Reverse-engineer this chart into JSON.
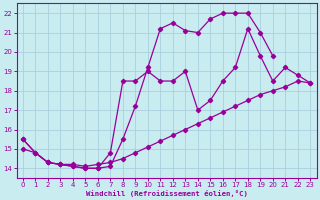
{
  "xlabel": "Windchill (Refroidissement éolien,°C)",
  "background_color": "#c8ecf0",
  "grid_color": "#a8d0dc",
  "line_color": "#990099",
  "xlim": [
    -0.5,
    23.5
  ],
  "ylim": [
    13.5,
    22.5
  ],
  "xticks": [
    0,
    1,
    2,
    3,
    4,
    5,
    6,
    7,
    8,
    9,
    10,
    11,
    12,
    13,
    14,
    15,
    16,
    17,
    18,
    19,
    20,
    21,
    22,
    23
  ],
  "yticks": [
    14,
    15,
    16,
    17,
    18,
    19,
    20,
    21,
    22
  ],
  "line1_x": [
    0,
    1,
    2,
    3,
    4,
    5,
    6,
    7,
    8,
    9,
    10,
    11,
    12,
    13,
    14,
    15,
    16,
    17,
    18,
    19,
    20
  ],
  "line1_y": [
    15.5,
    14.8,
    14.3,
    14.2,
    14.1,
    14.0,
    14.0,
    14.1,
    15.5,
    17.2,
    19.2,
    21.2,
    21.5,
    21.1,
    21.0,
    21.7,
    22.0,
    22.0,
    22.0,
    21.0,
    19.8
  ],
  "line2_x": [
    0,
    1,
    2,
    3,
    4,
    5,
    6,
    7,
    8,
    9,
    10,
    11,
    12,
    13,
    14,
    15,
    16,
    17,
    18,
    19,
    20,
    21,
    22,
    23
  ],
  "line2_y": [
    15.0,
    14.8,
    14.3,
    14.2,
    14.1,
    14.0,
    14.0,
    14.8,
    18.5,
    18.5,
    19.0,
    18.5,
    18.5,
    19.0,
    17.0,
    17.5,
    18.5,
    19.2,
    21.2,
    19.8,
    18.5,
    19.2,
    18.8,
    18.4
  ],
  "line3_x": [
    0,
    1,
    2,
    3,
    4,
    5,
    6,
    7,
    8,
    9,
    10,
    11,
    12,
    13,
    14,
    15,
    16,
    17,
    18,
    19,
    20,
    21,
    22,
    23
  ],
  "line3_y": [
    15.5,
    14.8,
    14.3,
    14.2,
    14.2,
    14.1,
    14.2,
    14.3,
    14.5,
    14.8,
    15.1,
    15.4,
    15.7,
    16.0,
    16.3,
    16.6,
    16.9,
    17.2,
    17.5,
    17.8,
    18.0,
    18.2,
    18.5,
    18.4
  ]
}
